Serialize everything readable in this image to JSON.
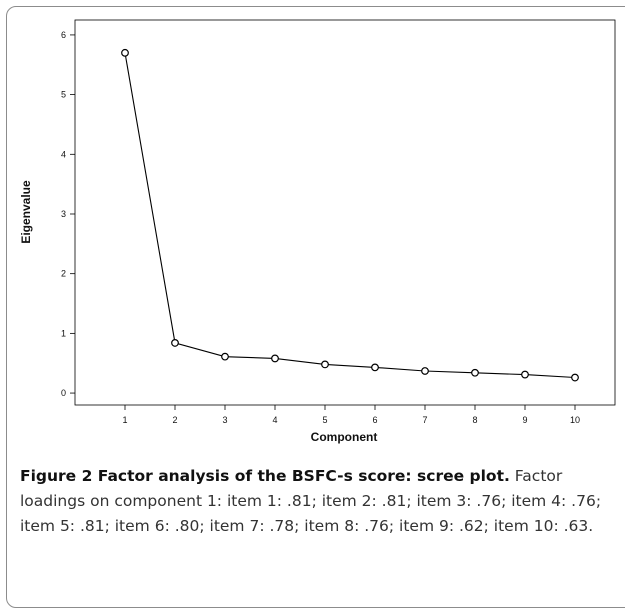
{
  "chart_data": {
    "type": "line",
    "xlabel": "Component",
    "ylabel": "Eigenvalue",
    "x": [
      1,
      2,
      3,
      4,
      5,
      6,
      7,
      8,
      9,
      10
    ],
    "x_ticks": [
      "1",
      "2",
      "3",
      "4",
      "5",
      "6",
      "7",
      "8",
      "9",
      "10"
    ],
    "y_ticks": [
      "0",
      "1",
      "2",
      "3",
      "4",
      "5",
      "6"
    ],
    "series": [
      {
        "values": [
          5.7,
          0.84,
          0.61,
          0.58,
          0.48,
          0.43,
          0.37,
          0.34,
          0.31,
          0.26
        ]
      }
    ],
    "xlim": [
      0,
      10.8
    ],
    "ylim": [
      -0.2,
      6.25
    ],
    "grid": false,
    "marker": "open-circle",
    "line_color": "#000000"
  },
  "caption": {
    "title": "Figure 2 Factor analysis of the BSFC-s score: scree plot.",
    "body": " Factor loadings on component 1: item 1: .81; item 2: .81; item 3: .76; item 4: .76; item 5: .81; item 6: .80; item 7: .78; item 8: .76; item 9: .62; item 10: .63."
  }
}
